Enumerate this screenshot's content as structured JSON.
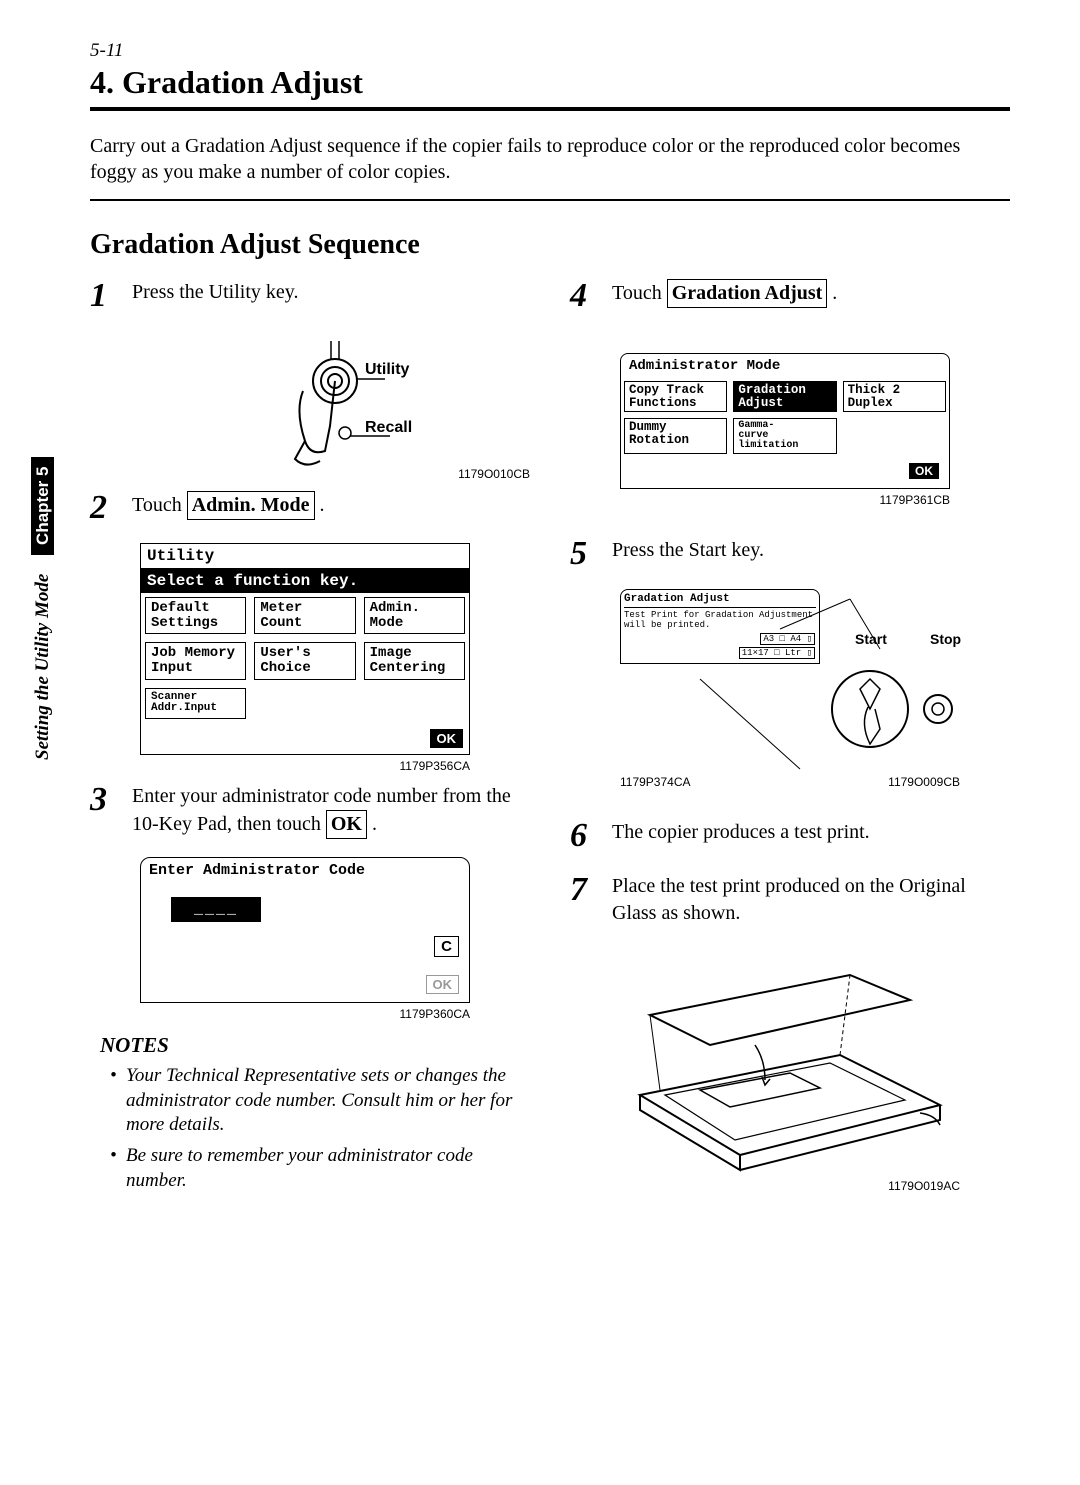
{
  "page_marker": "5-11",
  "title": "4. Gradation Adjust",
  "intro": "Carry out a Gradation Adjust sequence if the copier fails to reproduce color or the reproduced color becomes foggy as you make a number of color copies.",
  "section": "Gradation Adjust Sequence",
  "side_tab_mode": "Setting the Utility Mode",
  "side_tab_chapter": "Chapter 5",
  "steps": {
    "s1": {
      "num": "1",
      "text": "Press the Utility key."
    },
    "s2": {
      "num": "2",
      "text_a": "Touch ",
      "admin_mode": "Admin. Mode",
      "text_b": " ."
    },
    "s3": {
      "num": "3",
      "text_a": "Enter your administrator code number from the 10-Key Pad, then touch ",
      "ok": "OK",
      "text_b": " ."
    },
    "s4": {
      "num": "4",
      "text_a": "Touch ",
      "grad": "Gradation Adjust",
      "text_b": " ."
    },
    "s5": {
      "num": "5",
      "text": "Press the Start key."
    },
    "s6": {
      "num": "6",
      "text": "The copier produces a test print."
    },
    "s7": {
      "num": "7",
      "text": "Place the test print produced on the Original Glass as shown."
    }
  },
  "fig1": {
    "utility": "Utility",
    "recall": "Recall",
    "code": "1179O010CB"
  },
  "fig2": {
    "title": "Utility",
    "prompt": "Select a function key.",
    "cells": [
      "Default\nSettings",
      "Meter\nCount",
      "Admin.\nMode",
      "Job Memory\nInput",
      "User's\nChoice",
      "Image\nCentering",
      "Scanner\nAddr.Input"
    ],
    "ok": "OK",
    "code": "1179P356CA"
  },
  "fig3": {
    "title": "Enter Administrator Code",
    "dashes": "____",
    "c": "C",
    "ok": "OK",
    "code": "1179P360CA"
  },
  "notes_head": "NOTES",
  "notes": [
    "Your Technical Representative sets or changes the administrator code number. Consult him or her for more details.",
    "Be sure to remember your administrator code number."
  ],
  "fig4": {
    "title": "Administrator Mode",
    "cells": [
      {
        "t": "Copy Track\nFunctions",
        "h": false
      },
      {
        "t": "Gradation\nAdjust",
        "h": true
      },
      {
        "t": "Thick 2\nDuplex",
        "h": false
      },
      {
        "t": "Dummy\nRotation",
        "h": false
      },
      {
        "t": "Gamma-\ncurve\nlimitation",
        "h": false
      }
    ],
    "ok": "OK",
    "code": "1179P361CB"
  },
  "fig5": {
    "grad_title": "Gradation Adjust",
    "grad_text": "Test Print for Gradation Adjustment will be printed.",
    "a3": "A3 □ A4 ▯",
    "a11": "11×17 □ Ltr ▯",
    "start": "Start",
    "stop": "Stop",
    "code_left": "1179P374CA",
    "code_right": "1179O009CB"
  },
  "fig7": {
    "code": "1179O019AC"
  }
}
